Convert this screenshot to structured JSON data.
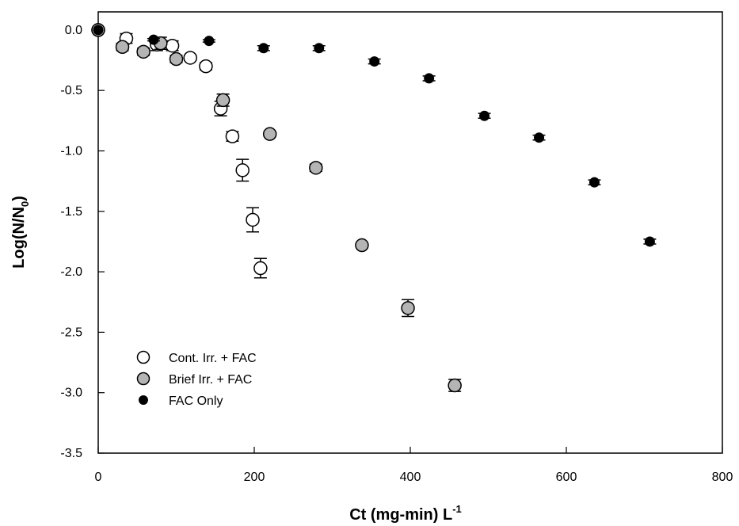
{
  "chart_data": {
    "type": "scatter",
    "xlabel": {
      "main": "Ct (mg-min) L",
      "sup": "-1"
    },
    "ylabel": {
      "main": "Log(N/N",
      "sub": "0",
      "end": ")"
    },
    "xlim": [
      0,
      800
    ],
    "ylim": [
      -3.5,
      0.15
    ],
    "x_ticks": [
      "0",
      "200",
      "400",
      "600",
      "800"
    ],
    "y_ticks": [
      "0.0",
      "-0.5",
      "-1.0",
      "-1.5",
      "-2.0",
      "-2.5",
      "-3.0",
      "-3.5"
    ],
    "grid": false,
    "legend_position": "bottom-left",
    "series": [
      {
        "name": "Cont. Irr. + FAC",
        "marker": "open-circle",
        "fill": "#ffffff",
        "x": [
          0,
          36,
          75,
          95,
          118,
          138,
          157,
          172,
          185,
          198,
          208
        ],
        "y": [
          0.0,
          -0.07,
          -0.12,
          -0.13,
          -0.23,
          -0.3,
          -0.65,
          -0.88,
          -1.16,
          -1.57,
          -1.97
        ],
        "err": [
          0,
          0.04,
          0.05,
          0.04,
          0.02,
          0.03,
          0.06,
          0.04,
          0.09,
          0.1,
          0.08
        ]
      },
      {
        "name": "Brief Irr. + FAC",
        "marker": "filled-circle",
        "fill": "#b4b4b4",
        "x": [
          0,
          31,
          58,
          80,
          100,
          160,
          220,
          279,
          338,
          397,
          457
        ],
        "y": [
          0.0,
          -0.14,
          -0.18,
          -0.11,
          -0.24,
          -0.58,
          -0.86,
          -1.14,
          -1.78,
          -2.3,
          -2.94
        ],
        "err": [
          0,
          0.03,
          0.03,
          0.05,
          0.03,
          0.05,
          0.02,
          0.03,
          0.02,
          0.07,
          0.05
        ]
      },
      {
        "name": "FAC Only",
        "marker": "small-dot",
        "fill": "#000000",
        "x": [
          0,
          71,
          142,
          212,
          283,
          354,
          424,
          495,
          565,
          636,
          707
        ],
        "y": [
          0.0,
          -0.08,
          -0.09,
          -0.15,
          -0.15,
          -0.26,
          -0.4,
          -0.71,
          -0.89,
          -1.26,
          -1.75
        ],
        "err": [
          0,
          0.01,
          0.01,
          0.02,
          0.02,
          0.02,
          0.02,
          0.02,
          0.02,
          0.02,
          0.02
        ]
      }
    ]
  }
}
